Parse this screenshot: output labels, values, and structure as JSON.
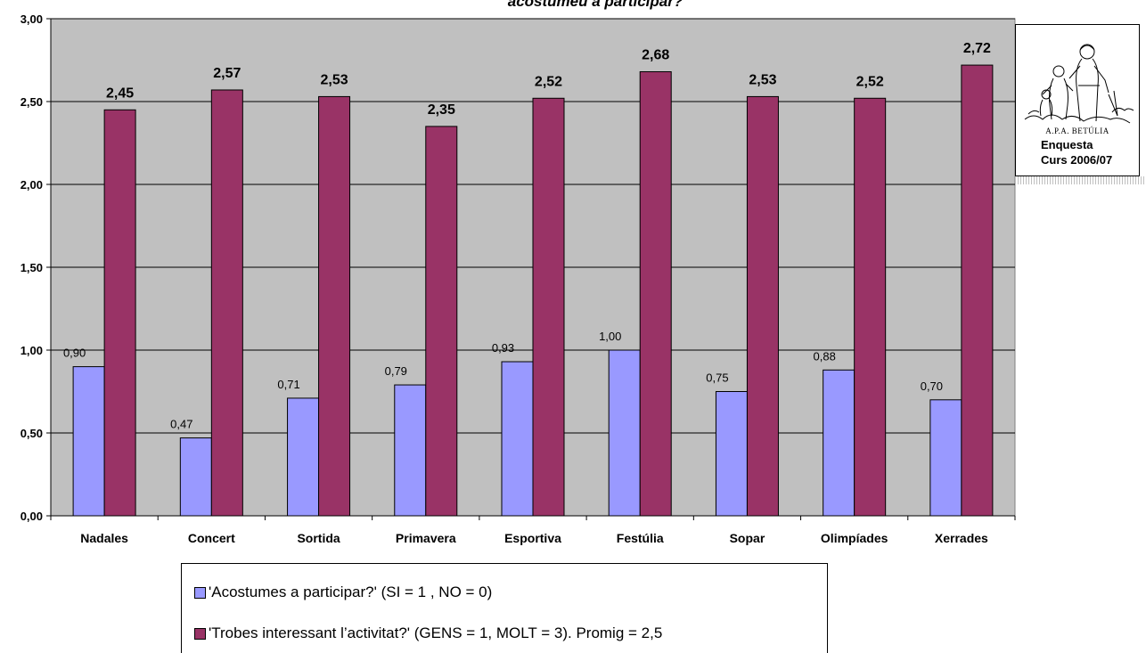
{
  "chart_data": {
    "type": "bar",
    "title": "acostumeu a participar?",
    "categories": [
      "Nadales",
      "Concert",
      "Sortida",
      "Primavera",
      "Esportiva",
      "Festúlia",
      "Sopar",
      "Olimpíades",
      "Xerrades"
    ],
    "series": [
      {
        "name": "'Acostumes a participar?' (SI = 1 , NO = 0)",
        "values": [
          0.9,
          0.47,
          0.71,
          0.79,
          0.93,
          1.0,
          0.75,
          0.88,
          0.7
        ],
        "labels": [
          "0,90",
          "0,47",
          "0,71",
          "0,79",
          "0,93",
          "1,00",
          "0,75",
          "0,88",
          "0,70"
        ],
        "color": "#9999FF"
      },
      {
        "name": "'Trobes interessant l’activitat?' (GENS = 1, MOLT =  3). Promig = 2,5",
        "values": [
          2.45,
          2.57,
          2.53,
          2.35,
          2.52,
          2.68,
          2.53,
          2.52,
          2.72
        ],
        "labels": [
          "2,45",
          "2,57",
          "2,53",
          "2,35",
          "2,52",
          "2,68",
          "2,53",
          "2,52",
          "2,72"
        ],
        "color": "#993366"
      }
    ],
    "ylim": [
      0,
      3
    ],
    "yticks": [
      0,
      0.5,
      1,
      1.5,
      2,
      2.5,
      3
    ],
    "ytick_labels": [
      "0,00",
      "0,50",
      "1,00",
      "1,50",
      "2,00",
      "2,50",
      "3,00"
    ],
    "grid": true,
    "plot_background": "#C0C0C0",
    "legend_position": "bottom"
  },
  "logo": {
    "caption": "A.P.A. BETÚLIA",
    "line1": "Enquesta",
    "line2": "Curs 2006/07"
  }
}
